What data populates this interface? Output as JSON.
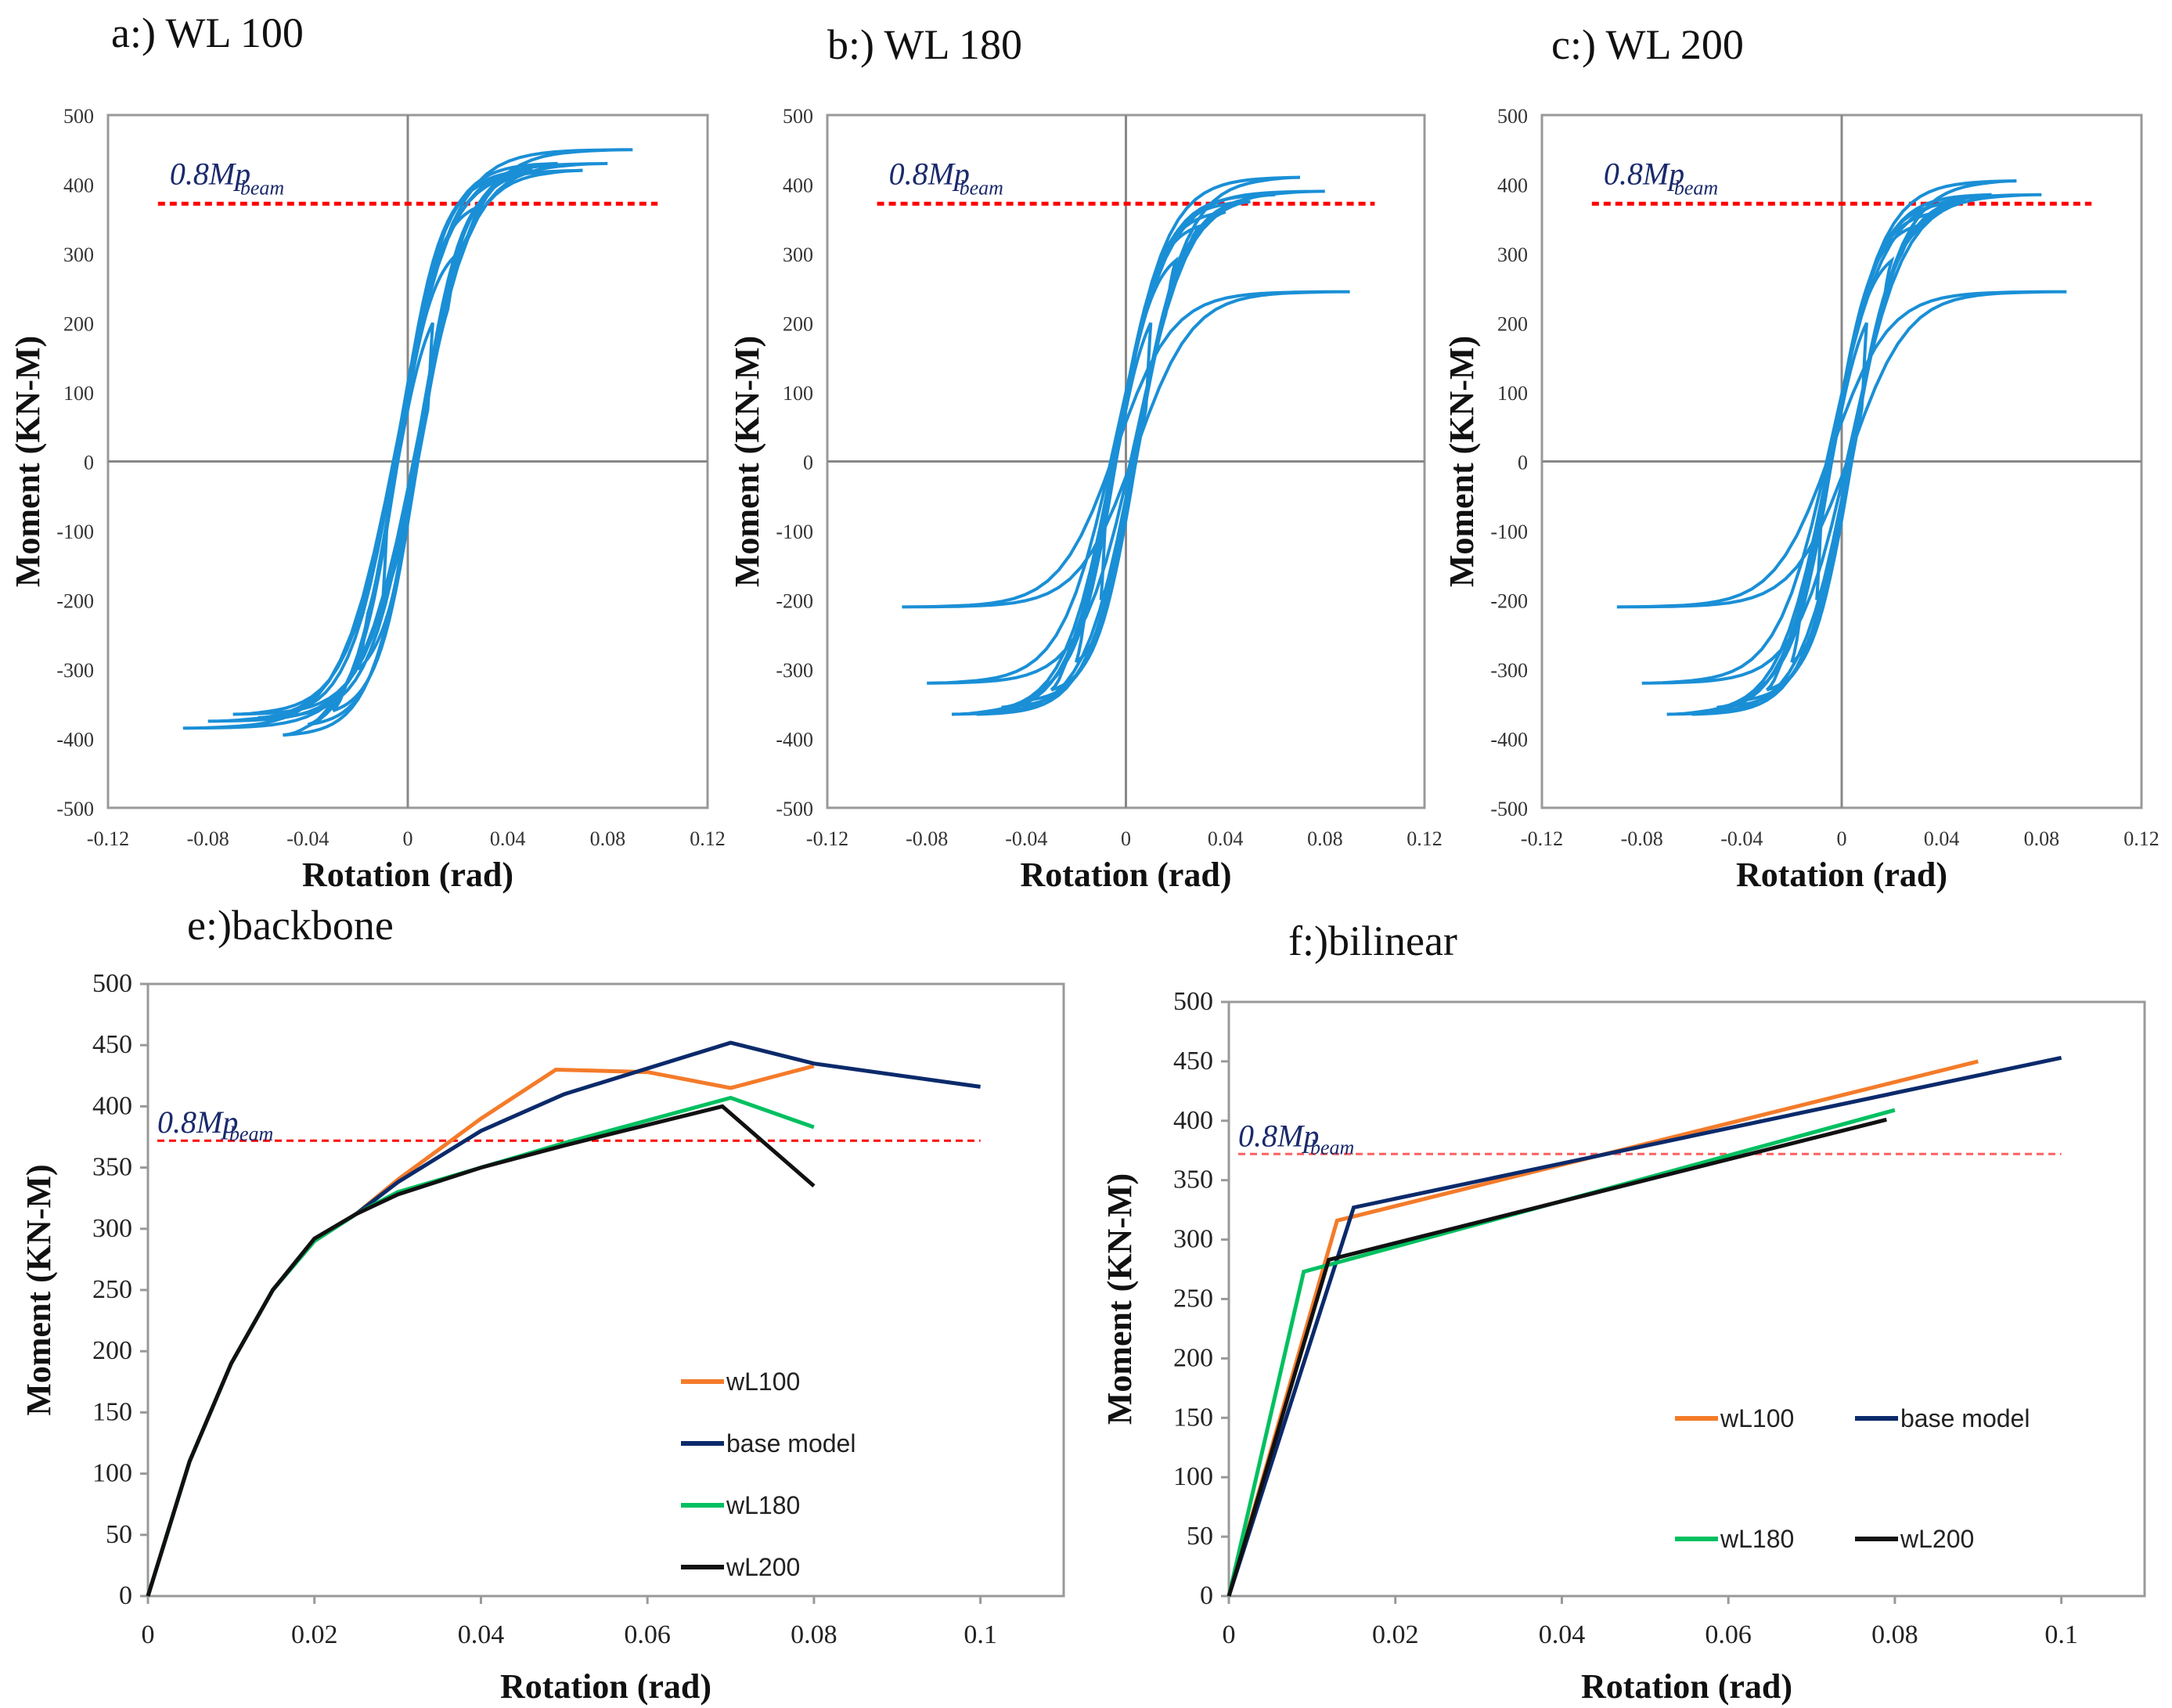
{
  "chart_data": [
    {
      "id": "a",
      "type": "line",
      "title": "a:) WL 100",
      "xlabel": "Rotation (rad)",
      "ylabel": "Moment (KN-M)",
      "xlim": [
        -0.12,
        0.12
      ],
      "ylim": [
        -500,
        500
      ],
      "xticks": [
        "-0.12",
        "-0.08",
        "-0.04",
        "0",
        "0.04",
        "0.08",
        "0.12"
      ],
      "yticks": [
        "500",
        "400",
        "300",
        "200",
        "100",
        "0",
        "-100",
        "-200",
        "-300",
        "-400",
        "-500"
      ],
      "reference": {
        "label": "0.8Mp",
        "sub": "beam",
        "value": 372,
        "color": "#ff0000"
      },
      "series_color": "#1a8fd6",
      "cycles": {
        "rotation_amplitude": [
          0.01,
          0.02,
          0.03,
          0.04,
          0.05,
          0.06,
          0.07,
          0.08,
          0.09
        ],
        "positive_peak": [
          200,
          300,
          370,
          410,
          420,
          430,
          420,
          430,
          450
        ],
        "negative_peak": [
          -200,
          -300,
          -360,
          -380,
          -395,
          -370,
          -365,
          -375,
          -385
        ]
      }
    },
    {
      "id": "b",
      "type": "line",
      "title": "b:) WL 180",
      "xlabel": "Rotation (rad)",
      "ylabel": "Moment (KN-M)",
      "xlim": [
        -0.12,
        0.12
      ],
      "ylim": [
        -500,
        500
      ],
      "xticks": [
        "-0.12",
        "-0.08",
        "-0.04",
        "0",
        "0.04",
        "0.08",
        "0.12"
      ],
      "yticks": [
        "500",
        "400",
        "300",
        "200",
        "100",
        "0",
        "-100",
        "-200",
        "-300",
        "-400",
        "-500"
      ],
      "reference": {
        "label": "0.8Mp",
        "sub": "beam",
        "value": 372,
        "color": "#ff0000"
      },
      "series_color": "#1a8fd6",
      "cycles": {
        "rotation_amplitude": [
          0.01,
          0.02,
          0.03,
          0.04,
          0.05,
          0.06,
          0.07,
          0.08,
          0.09
        ],
        "positive_peak": [
          200,
          290,
          340,
          360,
          375,
          385,
          410,
          390,
          245
        ],
        "negative_peak": [
          -200,
          -290,
          -330,
          -345,
          -355,
          -365,
          -365,
          -320,
          -210
        ]
      }
    },
    {
      "id": "c",
      "type": "line",
      "title": "c:) WL 200",
      "xlabel": "Rotation (rad)",
      "ylabel": "Moment (KN-M)",
      "xlim": [
        -0.12,
        0.12
      ],
      "ylim": [
        -500,
        500
      ],
      "xticks": [
        "-0.12",
        "-0.08",
        "-0.04",
        "0",
        "0.04",
        "0.08",
        "0.12"
      ],
      "yticks": [
        "500",
        "400",
        "300",
        "200",
        "100",
        "0",
        "-100",
        "-200",
        "-300",
        "-400",
        "-500"
      ],
      "reference": {
        "label": "0.8Mp",
        "sub": "beam",
        "value": 372,
        "color": "#ff0000"
      },
      "series_color": "#1a8fd6",
      "cycles": {
        "rotation_amplitude": [
          0.01,
          0.02,
          0.03,
          0.04,
          0.05,
          0.06,
          0.07,
          0.08,
          0.09
        ],
        "positive_peak": [
          200,
          290,
          340,
          360,
          375,
          385,
          405,
          385,
          245
        ],
        "negative_peak": [
          -200,
          -290,
          -330,
          -345,
          -355,
          -365,
          -365,
          -320,
          -210
        ]
      }
    },
    {
      "id": "e",
      "type": "line",
      "title": "e:)backbone",
      "xlabel": "Rotation (rad)",
      "ylabel": "Moment (KN-M)",
      "xlim": [
        0,
        0.11
      ],
      "ylim": [
        0,
        500
      ],
      "xticks": [
        "0",
        "0.02",
        "0.04",
        "0.06",
        "0.08",
        "0.1"
      ],
      "yticks": [
        "0",
        "50",
        "100",
        "150",
        "200",
        "250",
        "300",
        "350",
        "400",
        "450",
        "500"
      ],
      "reference": {
        "label": "0.8Mp",
        "sub": "beam",
        "value": 372,
        "color": "#ff0000"
      },
      "legend": "right-bottom-stacked",
      "series": [
        {
          "name": "wL100",
          "color": "#f47b2a",
          "x": [
            0,
            0.005,
            0.01,
            0.015,
            0.02,
            0.025,
            0.03,
            0.04,
            0.049,
            0.06,
            0.07,
            0.08
          ],
          "y": [
            0,
            110,
            190,
            250,
            290,
            312,
            340,
            390,
            430,
            428,
            415,
            433
          ]
        },
        {
          "name": "base model",
          "color": "#0b2a6b",
          "x": [
            0,
            0.005,
            0.01,
            0.015,
            0.02,
            0.025,
            0.03,
            0.04,
            0.05,
            0.07,
            0.08,
            0.1
          ],
          "y": [
            0,
            110,
            190,
            250,
            290,
            312,
            338,
            380,
            410,
            452,
            435,
            416
          ]
        },
        {
          "name": "wL180",
          "color": "#00c060",
          "x": [
            0,
            0.005,
            0.01,
            0.015,
            0.02,
            0.025,
            0.03,
            0.04,
            0.05,
            0.07,
            0.08
          ],
          "y": [
            0,
            110,
            190,
            250,
            290,
            312,
            330,
            350,
            370,
            407,
            383
          ]
        },
        {
          "name": "wL200",
          "color": "#111111",
          "x": [
            0,
            0.005,
            0.01,
            0.015,
            0.02,
            0.025,
            0.03,
            0.04,
            0.05,
            0.069,
            0.08
          ],
          "y": [
            0,
            110,
            190,
            250,
            292,
            312,
            328,
            350,
            368,
            400,
            335
          ]
        }
      ]
    },
    {
      "id": "f",
      "type": "line",
      "title": "f:)bilinear",
      "xlabel": "Rotation (rad)",
      "ylabel": "Moment (KN-M)",
      "xlim": [
        0,
        0.11
      ],
      "ylim": [
        0,
        500
      ],
      "xticks": [
        "0",
        "0.02",
        "0.04",
        "0.06",
        "0.08",
        "0.1"
      ],
      "yticks": [
        "0",
        "50",
        "100",
        "150",
        "200",
        "250",
        "300",
        "350",
        "400",
        "450",
        "500"
      ],
      "reference": {
        "label": "0.8Mp",
        "sub": "beam",
        "value": 372,
        "color": "#ff6060"
      },
      "legend": "right-grid",
      "series": [
        {
          "name": "wL100",
          "color": "#f47b2a",
          "x": [
            0,
            0.013,
            0.09
          ],
          "y": [
            0,
            316,
            450
          ]
        },
        {
          "name": "base model",
          "color": "#0b2a6b",
          "x": [
            0,
            0.015,
            0.1
          ],
          "y": [
            0,
            327,
            453
          ]
        },
        {
          "name": "wL180",
          "color": "#00c060",
          "x": [
            0,
            0.009,
            0.08
          ],
          "y": [
            0,
            273,
            409
          ]
        },
        {
          "name": "wL200",
          "color": "#111111",
          "x": [
            0,
            0.012,
            0.079
          ],
          "y": [
            0,
            283,
            401
          ]
        }
      ]
    }
  ]
}
